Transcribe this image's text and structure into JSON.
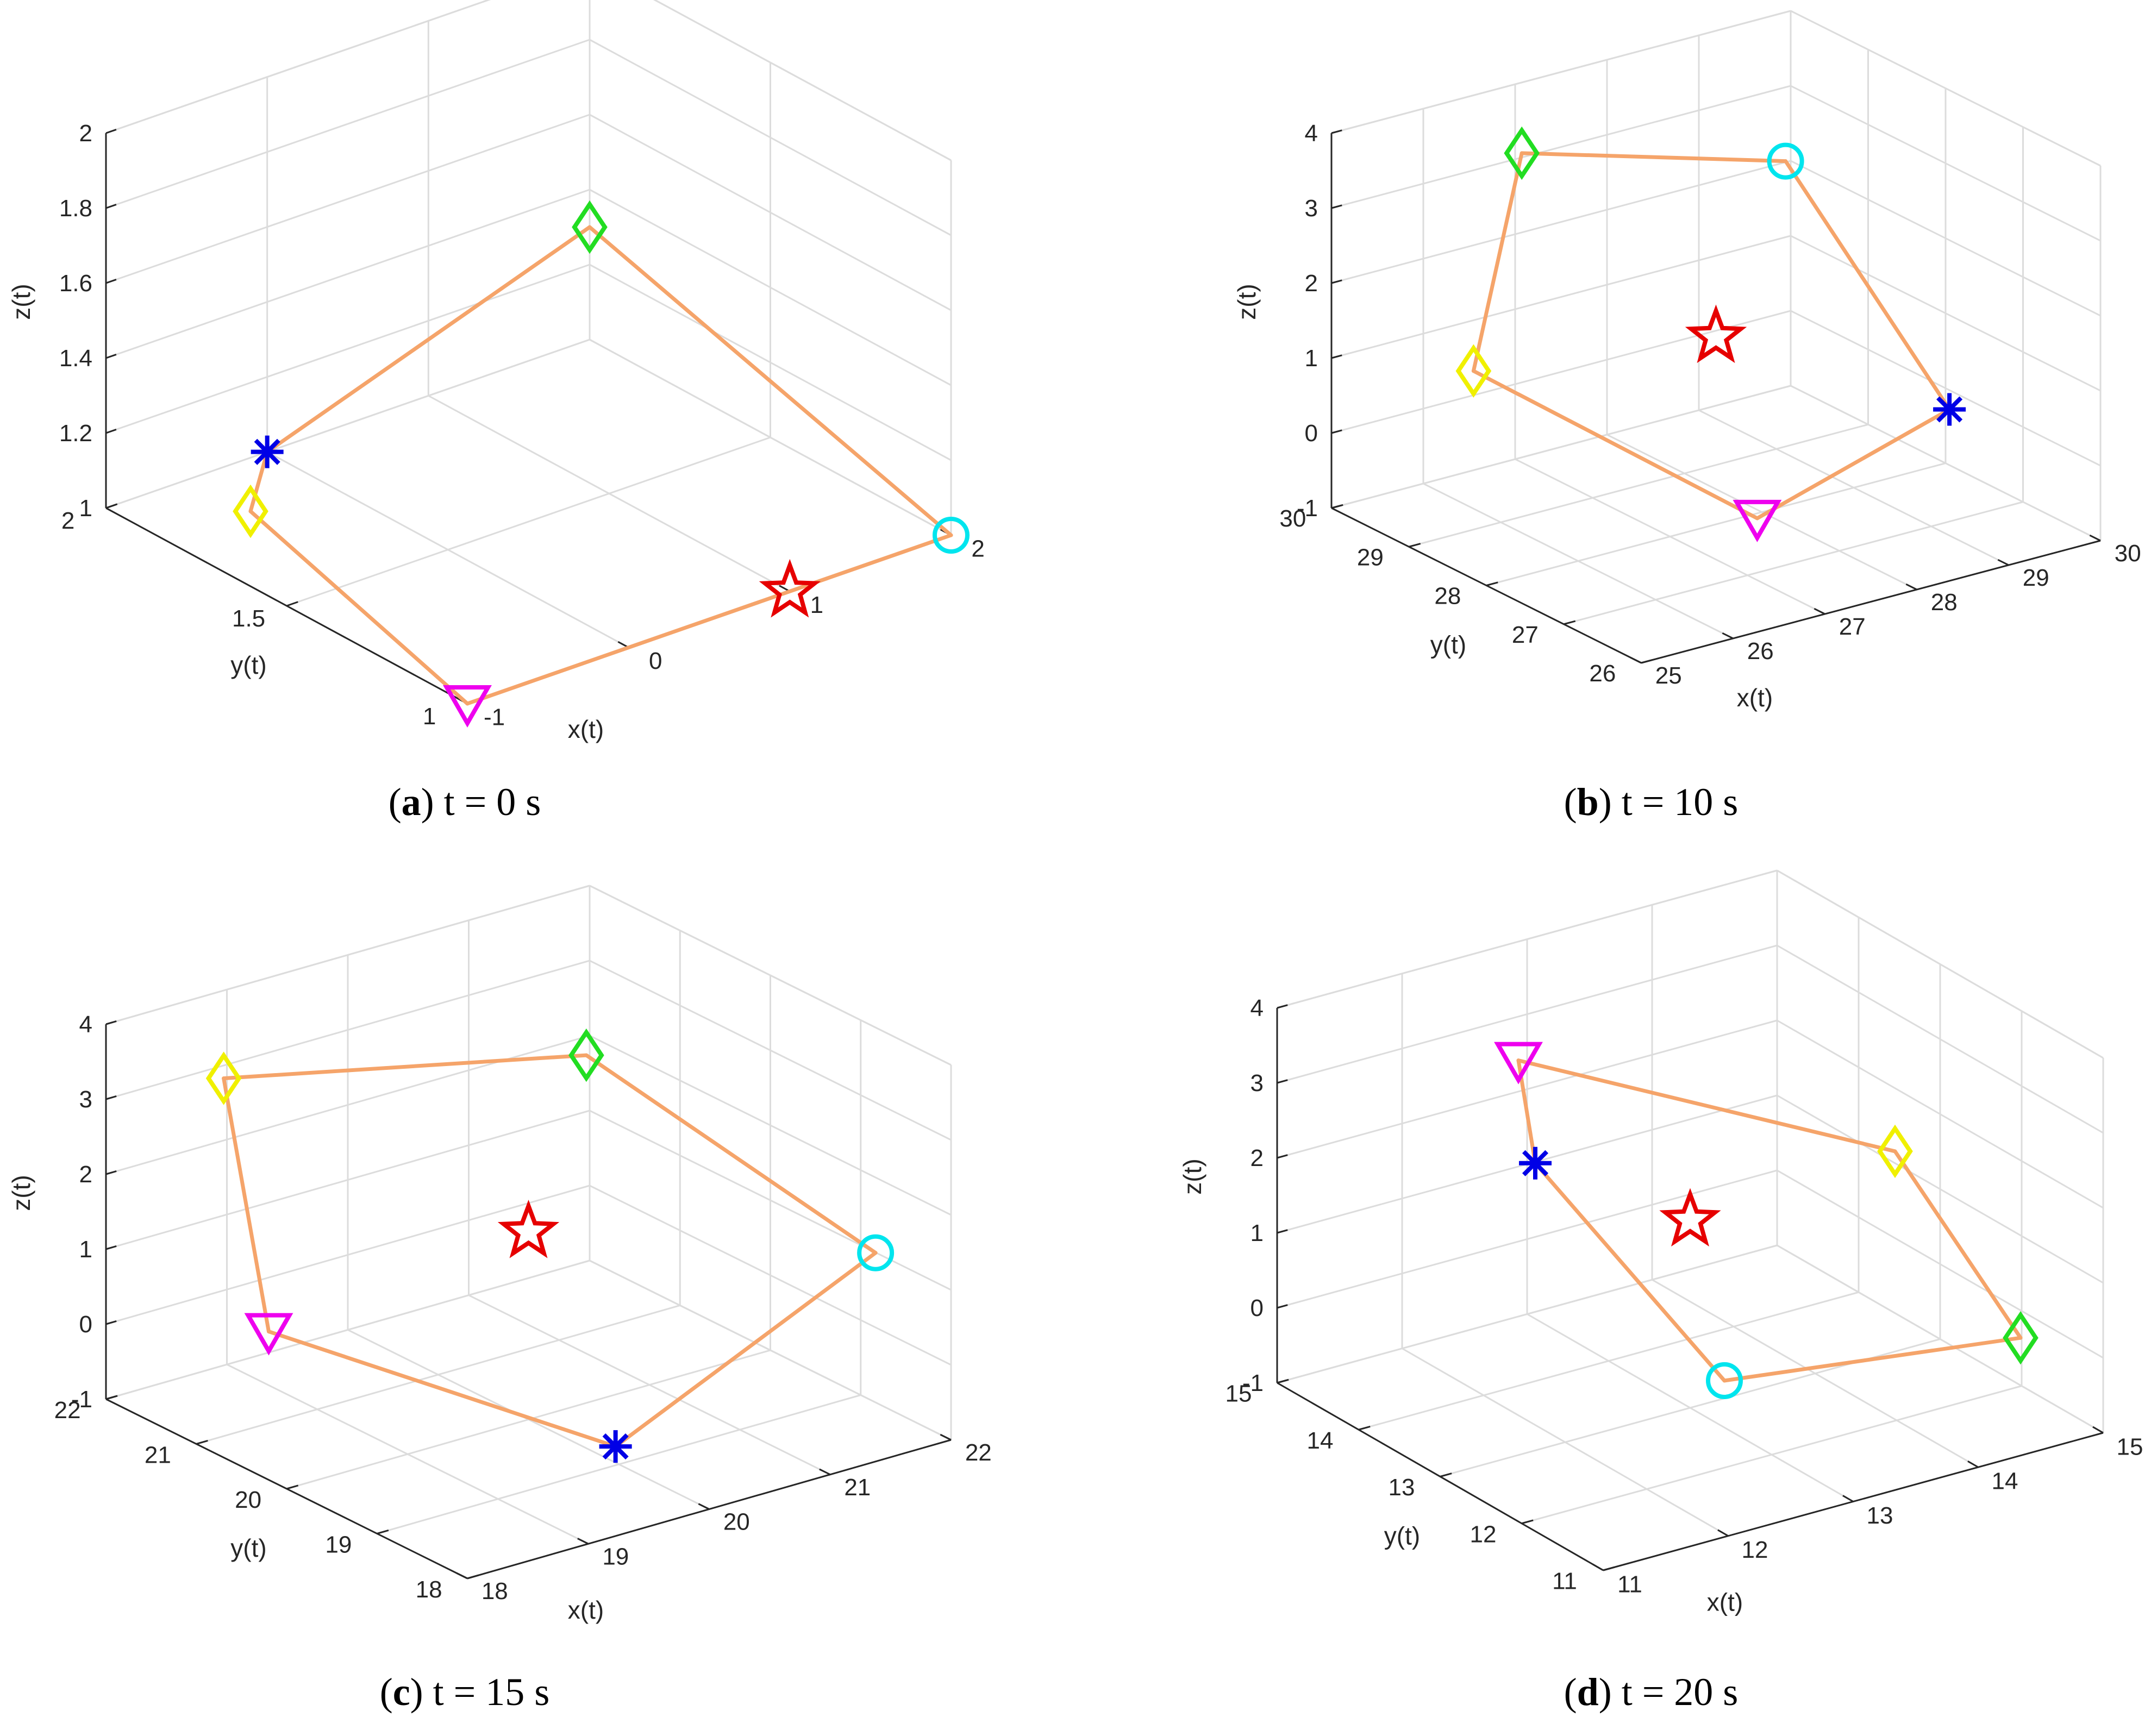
{
  "colors": {
    "line": "#f5a46a",
    "grid": "#dcdcdc",
    "axis": "#262626",
    "star": "#e60000",
    "asterisk": "#0000e6",
    "circle": "#00e5ee",
    "diamond_green": "#22dd22",
    "diamond_yellow": "#f0f000",
    "triangle": "#ee00ee"
  },
  "chart_data": [
    {
      "type": "scatter3d",
      "caption_letter": "a",
      "caption_text": "t = 0 s",
      "xlabel": "x(t)",
      "ylabel": "y(t)",
      "zlabel": "z(t)",
      "xticks": [
        "-1",
        "0",
        "1",
        "2"
      ],
      "yticks": [
        "1",
        "1.5",
        "2"
      ],
      "zticks": [
        "1",
        "1.2",
        "1.4",
        "1.6",
        "1.8",
        "2"
      ],
      "xlim": [
        -1,
        2
      ],
      "ylim": [
        1,
        2
      ],
      "zlim": [
        1,
        2
      ],
      "leader": {
        "marker": "star",
        "x": 1,
        "y": 1,
        "z": 1
      },
      "agents": [
        {
          "marker": "asterisk",
          "x": 0,
          "y": 2,
          "z": 1
        },
        {
          "marker": "diamond",
          "color": "green",
          "x": 2,
          "y": 2,
          "z": 1.3
        },
        {
          "marker": "circle",
          "x": 2,
          "y": 1,
          "z": 1
        },
        {
          "marker": "triangle",
          "x": -1,
          "y": 1,
          "z": 1
        },
        {
          "marker": "diamond",
          "color": "yellow",
          "x": -1,
          "y": 1.6,
          "z": 1.2
        }
      ],
      "edges": [
        [
          0,
          1
        ],
        [
          1,
          2
        ],
        [
          2,
          3
        ],
        [
          3,
          4
        ],
        [
          4,
          0
        ]
      ]
    },
    {
      "type": "scatter3d",
      "caption_letter": "b",
      "caption_text": "t = 10 s",
      "xlabel": "x(t)",
      "ylabel": "y(t)",
      "zlabel": "z(t)",
      "xticks": [
        "25",
        "26",
        "27",
        "28",
        "29",
        "30"
      ],
      "yticks": [
        "26",
        "27",
        "28",
        "29",
        "30"
      ],
      "zticks": [
        "-1",
        "0",
        "1",
        "2",
        "3",
        "4"
      ],
      "xlim": [
        25,
        30
      ],
      "ylim": [
        25,
        30
      ],
      "zlim": [
        -1,
        4
      ],
      "leader": {
        "marker": "star",
        "x": 27.5,
        "y": 27.5,
        "z": 1.5
      },
      "agents": [
        {
          "marker": "asterisk",
          "x": 29.3,
          "y": 26.4,
          "z": 0.4
        },
        {
          "marker": "circle",
          "x": 29,
          "y": 28.6,
          "z": 2.9
        },
        {
          "marker": "diamond",
          "color": "green",
          "x": 26.6,
          "y": 29.3,
          "z": 3.5
        },
        {
          "marker": "diamond",
          "color": "yellow",
          "x": 25.4,
          "y": 28.3,
          "z": 1.4
        },
        {
          "marker": "triangle",
          "x": 26.6,
          "y": 25.5,
          "z": 0.2
        }
      ],
      "edges": [
        [
          0,
          1
        ],
        [
          1,
          2
        ],
        [
          2,
          3
        ],
        [
          3,
          4
        ],
        [
          4,
          0
        ]
      ]
    },
    {
      "type": "scatter3d",
      "caption_letter": "c",
      "caption_text": "t = 15 s",
      "xlabel": "x(t)",
      "ylabel": "y(t)",
      "zlabel": "z(t)",
      "xticks": [
        "18",
        "19",
        "20",
        "21",
        "22"
      ],
      "yticks": [
        "18",
        "19",
        "20",
        "21",
        "22"
      ],
      "zticks": [
        "-1",
        "0",
        "1",
        "2",
        "3",
        "4"
      ],
      "xlim": [
        18,
        22
      ],
      "ylim": [
        18,
        22
      ],
      "zlim": [
        -1,
        4
      ],
      "leader": {
        "marker": "star",
        "x": 20,
        "y": 20,
        "z": 1.5
      },
      "agents": [
        {
          "marker": "diamond",
          "color": "yellow",
          "x": 18.6,
          "y": 21.5,
          "z": 3.3
        },
        {
          "marker": "diamond",
          "color": "green",
          "x": 21.3,
          "y": 21.1,
          "z": 2.6
        },
        {
          "marker": "circle",
          "x": 21.6,
          "y": 18.3,
          "z": 1.5
        },
        {
          "marker": "asterisk",
          "x": 19.3,
          "y": 18.1,
          "z": 0.1
        },
        {
          "marker": "triangle",
          "x": 18.3,
          "y": 20.6,
          "z": 0.6
        }
      ],
      "edges": [
        [
          0,
          1
        ],
        [
          1,
          2
        ],
        [
          2,
          3
        ],
        [
          3,
          4
        ],
        [
          4,
          0
        ]
      ]
    },
    {
      "type": "scatter3d",
      "caption_letter": "d",
      "caption_text": "t = 20 s",
      "xlabel": "x(t)",
      "ylabel": "y(t)",
      "zlabel": "z(t)",
      "xticks": [
        "11",
        "12",
        "13",
        "14",
        "15"
      ],
      "yticks": [
        "11",
        "12",
        "13",
        "14",
        "15"
      ],
      "zticks": [
        "-1",
        "0",
        "1",
        "2",
        "3",
        "4"
      ],
      "xlim": [
        11,
        15
      ],
      "ylim": [
        11,
        15
      ],
      "zlim": [
        -1,
        4
      ],
      "leader": {
        "marker": "star",
        "x": 13,
        "y": 13,
        "z": 1.5
      },
      "agents": [
        {
          "marker": "asterisk",
          "x": 11.5,
          "y": 12.6,
          "z": 3.2
        },
        {
          "marker": "triangle",
          "x": 12.8,
          "y": 14.8,
          "z": 2.6
        },
        {
          "marker": "diamond",
          "color": "yellow",
          "x": 14.9,
          "y": 13.4,
          "z": 1.3
        },
        {
          "marker": "diamond",
          "color": "green",
          "x": 14.6,
          "y": 11.4,
          "z": 0.2
        },
        {
          "marker": "circle",
          "x": 12.1,
          "y": 11.2,
          "z": 0.9
        }
      ],
      "edges": [
        [
          0,
          1
        ],
        [
          1,
          2
        ],
        [
          2,
          3
        ],
        [
          3,
          4
        ],
        [
          4,
          0
        ]
      ]
    }
  ]
}
